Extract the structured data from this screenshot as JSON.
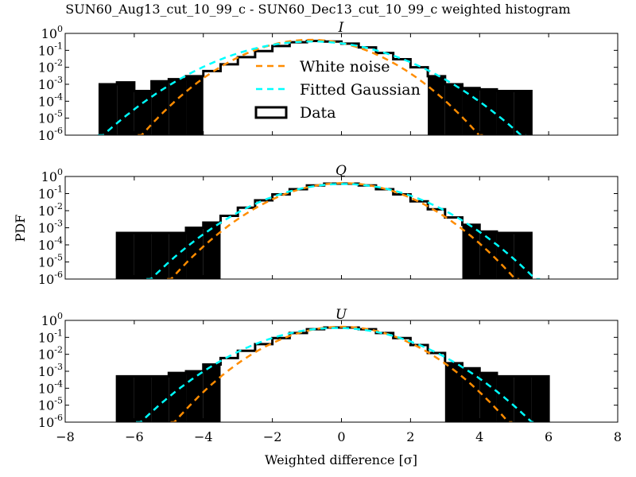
{
  "chart_data": {
    "type": "histogram",
    "title": "SUN60_Aug13_cut_10_99_c - SUN60_Dec13_cut_10_99_c weighted histogram",
    "xlabel": "Weighted difference [σ]",
    "ylabel": "PDF",
    "xlim": [
      -8,
      8
    ],
    "ylim": [
      1e-06,
      1
    ],
    "yscale": "log",
    "xticks": [
      "−8",
      "−6",
      "−4",
      "−2",
      "0",
      "2",
      "4",
      "6",
      "8"
    ],
    "xtick_values": [
      -8,
      -6,
      -4,
      -2,
      0,
      2,
      4,
      6,
      8
    ],
    "yticks": [
      {
        "base": "10",
        "exp": "0",
        "value": 1
      },
      {
        "base": "10",
        "exp": "-1",
        "value": 0.1
      },
      {
        "base": "10",
        "exp": "-2",
        "value": 0.01
      },
      {
        "base": "10",
        "exp": "-3",
        "value": 0.001
      },
      {
        "base": "10",
        "exp": "-4",
        "value": 0.0001
      },
      {
        "base": "10",
        "exp": "-5",
        "value": 1e-05
      },
      {
        "base": "10",
        "exp": "-6",
        "value": 1e-06
      }
    ],
    "legend": {
      "placement": "center",
      "entries": [
        {
          "label": "White noise",
          "color": "#ff8c00",
          "style": "dashed"
        },
        {
          "label": "Fitted Gaussian",
          "color": "#00ffff",
          "style": "dashed"
        },
        {
          "label": "Data",
          "color": "#000000",
          "style": "box"
        }
      ]
    },
    "panels": [
      {
        "title": "I",
        "white_noise": {
          "mean": -0.9,
          "sigma": 0.96
        },
        "fitted_gaussian": {
          "mean": -0.85,
          "sigma": 1.2
        },
        "data": {
          "bin_start": -7.0,
          "bin_width": 0.5,
          "values": [
            0.001,
            0.0013,
            0.0004,
            0.0015,
            0.002,
            0.003,
            0.006,
            0.015,
            0.04,
            0.09,
            0.18,
            0.3,
            0.36,
            0.33,
            0.25,
            0.15,
            0.07,
            0.03,
            0.01,
            0.003,
            0.001,
            0.0006,
            0.0005,
            0.0004,
            0.0004
          ]
        }
      },
      {
        "title": "Q",
        "white_noise": {
          "mean": 0.05,
          "sigma": 0.98
        },
        "fitted_gaussian": {
          "mean": 0.05,
          "sigma": 1.1
        },
        "data": {
          "bin_start": -6.5,
          "bin_width": 0.5,
          "values": [
            0.0005,
            0.0005,
            0.0005,
            0.0005,
            0.001,
            0.002,
            0.005,
            0.015,
            0.04,
            0.09,
            0.18,
            0.3,
            0.38,
            0.38,
            0.3,
            0.18,
            0.09,
            0.035,
            0.012,
            0.004,
            0.0015,
            0.0006,
            0.0005,
            0.0005
          ]
        }
      },
      {
        "title": "U",
        "white_noise": {
          "mean": 0.0,
          "sigma": 0.95
        },
        "fitted_gaussian": {
          "mean": -0.15,
          "sigma": 1.12
        },
        "data": {
          "bin_start": -6.5,
          "bin_width": 0.5,
          "values": [
            0.0005,
            0.0005,
            0.0005,
            0.0008,
            0.001,
            0.0025,
            0.006,
            0.016,
            0.04,
            0.09,
            0.18,
            0.3,
            0.38,
            0.38,
            0.3,
            0.18,
            0.09,
            0.035,
            0.012,
            0.003,
            0.0015,
            0.0008,
            0.0005,
            0.0005,
            0.0005
          ]
        }
      }
    ]
  }
}
